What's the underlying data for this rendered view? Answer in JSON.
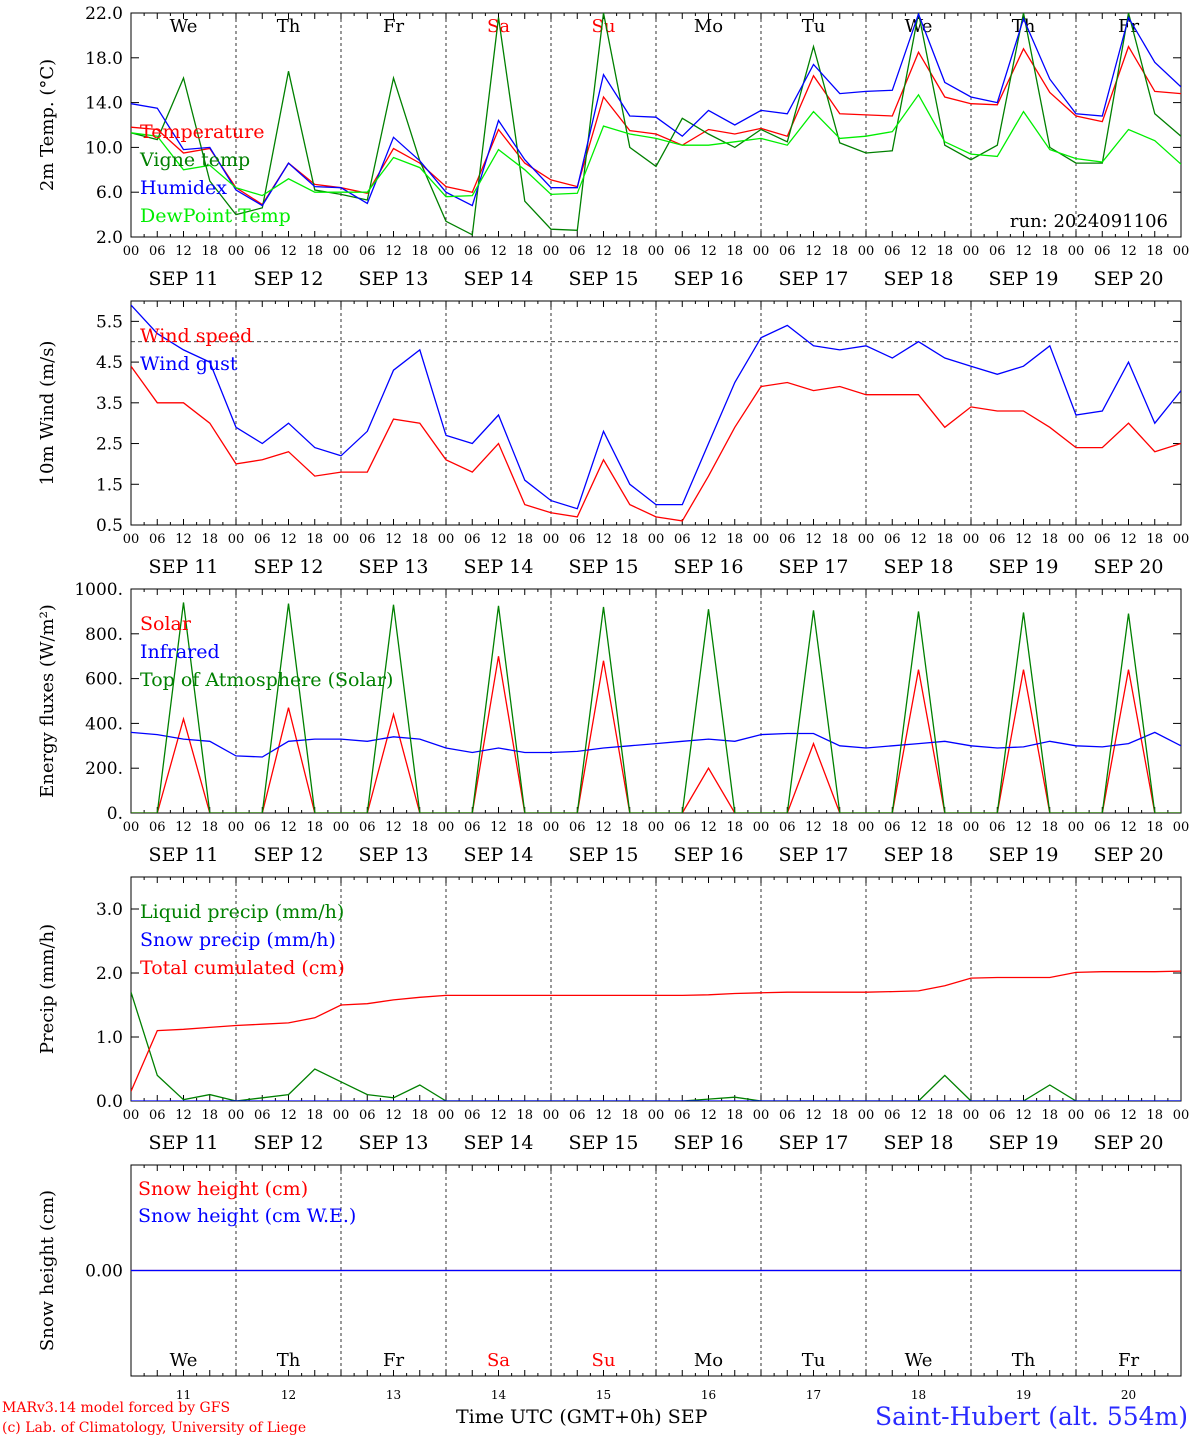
{
  "run_label": "run: 2024091106",
  "weekdays": [
    {
      "label": "We",
      "weekend": false
    },
    {
      "label": "Th",
      "weekend": false
    },
    {
      "label": "Fr",
      "weekend": false
    },
    {
      "label": "Sa",
      "weekend": true
    },
    {
      "label": "Su",
      "weekend": true
    },
    {
      "label": "Mo",
      "weekend": false
    },
    {
      "label": "Tu",
      "weekend": false
    },
    {
      "label": "We",
      "weekend": false
    },
    {
      "label": "Th",
      "weekend": false
    },
    {
      "label": "Fr",
      "weekend": false
    }
  ],
  "date_labels": [
    "SEP 11",
    "SEP 12",
    "SEP 13",
    "SEP 14",
    "SEP 15",
    "SEP 16",
    "SEP 17",
    "SEP 18",
    "SEP 19",
    "SEP 20"
  ],
  "hour_ticks": [
    "00",
    "06",
    "12",
    "18"
  ],
  "bottom_day_numbers": [
    "11",
    "12",
    "13",
    "14",
    "15",
    "16",
    "17",
    "18",
    "19",
    "20"
  ],
  "footer": {
    "credit_line1": "MARv3.14 model forced by GFS",
    "credit_line2": "(c) Lab. of Climatology, University of Liege",
    "x_title": "Time UTC (GMT+0h) SEP",
    "station": "Saint-Hubert (alt. 554m)"
  },
  "colors": {
    "red": "#ff0000",
    "green": "#008000",
    "blue": "#0000ff",
    "lightgreen": "#00ee00",
    "purple": "#800080",
    "weekend": "#ff0000"
  },
  "chart_data": [
    {
      "type": "line",
      "ylabel": "2m Temp. (°C)",
      "ylim": [
        2,
        22
      ],
      "yticks": [
        "2.0",
        "6.0",
        "10.0",
        "14.0",
        "18.0",
        "22.0"
      ],
      "x_hours_start": 0,
      "x_hours_end": 240,
      "step_hours": 6,
      "series": [
        {
          "name": "Temperature",
          "color": "red",
          "values": [
            11.8,
            11.6,
            9.5,
            9.9,
            6.4,
            4.9,
            8.6,
            6.7,
            6.4,
            5.9,
            9.9,
            8.6,
            6.5,
            6.0,
            11.6,
            8.6,
            7.1,
            6.5,
            14.5,
            11.5,
            11.2,
            10.2,
            11.6,
            11.2,
            11.7,
            11.0,
            16.4,
            13.0,
            12.9,
            12.8,
            18.5,
            14.5,
            13.9,
            13.8,
            18.8,
            14.9,
            12.8,
            12.3,
            19.0,
            15.0,
            14.8
          ]
        },
        {
          "name": "Vigne temp",
          "color": "green",
          "values": [
            11.3,
            10.7,
            16.2,
            7.0,
            4.0,
            4.6,
            16.8,
            6.2,
            5.8,
            5.3,
            16.2,
            8.8,
            3.4,
            2.2,
            21.6,
            5.2,
            2.7,
            2.6,
            22.0,
            10.0,
            8.3,
            12.6,
            11.2,
            10.0,
            11.6,
            10.5,
            19.0,
            10.4,
            9.5,
            9.7,
            22.0,
            10.2,
            8.9,
            10.2,
            22.0,
            10.0,
            8.6,
            8.6,
            22.0,
            13.0,
            11.0
          ]
        },
        {
          "name": "Humidex",
          "color": "blue",
          "values": [
            13.9,
            13.5,
            9.8,
            10.0,
            6.2,
            4.8,
            8.6,
            6.5,
            6.4,
            5.0,
            10.9,
            8.8,
            6.0,
            4.8,
            12.4,
            8.9,
            6.4,
            6.4,
            16.5,
            12.8,
            12.7,
            11.0,
            13.3,
            12.0,
            13.3,
            13.0,
            17.4,
            14.8,
            15.0,
            15.1,
            21.9,
            15.8,
            14.5,
            14.0,
            21.5,
            16.1,
            13.0,
            12.8,
            21.6,
            17.6,
            15.4
          ]
        },
        {
          "name": "DewPoint Temp",
          "color": "lightgreen",
          "values": [
            11.3,
            11.0,
            8.0,
            8.4,
            6.4,
            5.7,
            7.2,
            6.0,
            6.0,
            6.0,
            9.1,
            8.2,
            5.6,
            5.7,
            9.8,
            8.0,
            5.8,
            5.9,
            11.9,
            11.2,
            10.8,
            10.2,
            10.2,
            10.5,
            10.8,
            10.2,
            13.2,
            10.8,
            11.0,
            11.4,
            14.7,
            10.5,
            9.4,
            9.2,
            13.2,
            9.8,
            9.0,
            8.7,
            11.6,
            10.6,
            8.5
          ]
        }
      ]
    },
    {
      "type": "line",
      "ylabel": "10m Wind (m/s)",
      "ylim": [
        0.5,
        6.0
      ],
      "yticks": [
        "0.5",
        "1.5",
        "2.5",
        "3.5",
        "4.5",
        "5.5"
      ],
      "reference_line": 5.0,
      "x_hours_start": 0,
      "x_hours_end": 240,
      "step_hours": 6,
      "series": [
        {
          "name": "Wind speed",
          "color": "red",
          "values": [
            4.4,
            3.5,
            3.5,
            3.0,
            2.0,
            2.1,
            2.3,
            1.7,
            1.8,
            1.8,
            3.1,
            3.0,
            2.1,
            1.8,
            2.5,
            1.0,
            0.8,
            0.7,
            2.1,
            1.0,
            0.7,
            0.6,
            1.7,
            2.9,
            3.9,
            4.0,
            3.8,
            3.9,
            3.7,
            3.7,
            3.7,
            2.9,
            3.4,
            3.3,
            3.3,
            2.9,
            2.4,
            2.4,
            3.0,
            2.3,
            2.5
          ]
        },
        {
          "name": "Wind gust",
          "color": "blue",
          "values": [
            5.9,
            5.2,
            4.8,
            4.5,
            2.9,
            2.5,
            3.0,
            2.4,
            2.2,
            2.8,
            4.3,
            4.8,
            2.7,
            2.5,
            3.2,
            1.6,
            1.1,
            0.9,
            2.8,
            1.5,
            1.0,
            1.0,
            2.5,
            4.0,
            5.1,
            5.4,
            4.9,
            4.8,
            4.9,
            4.6,
            5.0,
            4.6,
            4.4,
            4.2,
            4.4,
            4.9,
            3.2,
            3.3,
            4.5,
            3.0,
            3.8
          ]
        }
      ]
    },
    {
      "type": "line",
      "ylabel": "Energy fluxes (W/m²)",
      "ylim": [
        0,
        1000
      ],
      "yticks": [
        "0.",
        "200.",
        "400.",
        "600.",
        "800.",
        "1000."
      ],
      "x_hours_start": 0,
      "x_hours_end": 240,
      "step_hours": 6,
      "series": [
        {
          "name": "Solar",
          "color": "red",
          "values": [
            0,
            0,
            420,
            0,
            0,
            0,
            470,
            0,
            0,
            0,
            440,
            0,
            0,
            0,
            700,
            0,
            0,
            0,
            680,
            0,
            0,
            0,
            200,
            0,
            0,
            0,
            310,
            0,
            0,
            0,
            640,
            0,
            0,
            0,
            640,
            0,
            0,
            0,
            640,
            0,
            0
          ]
        },
        {
          "name": "Infrared",
          "color": "blue",
          "values": [
            360,
            350,
            330,
            320,
            255,
            250,
            320,
            330,
            330,
            320,
            340,
            330,
            290,
            270,
            290,
            270,
            270,
            275,
            290,
            300,
            310,
            320,
            330,
            320,
            350,
            355,
            355,
            300,
            290,
            300,
            310,
            320,
            300,
            290,
            295,
            320,
            300,
            295,
            310,
            360,
            300
          ]
        },
        {
          "name": "Top of Atmosphere (Solar)",
          "color": "green",
          "values": [
            0,
            0,
            940,
            0,
            0,
            0,
            935,
            0,
            0,
            0,
            930,
            0,
            0,
            0,
            925,
            0,
            0,
            0,
            920,
            0,
            0,
            0,
            910,
            0,
            0,
            0,
            905,
            0,
            0,
            0,
            900,
            0,
            0,
            0,
            895,
            0,
            0,
            0,
            890,
            0,
            0
          ]
        }
      ]
    },
    {
      "type": "line",
      "ylabel": "Precip (mm/h)",
      "ylim": [
        0,
        3.5
      ],
      "yticks": [
        "0.0",
        "1.0",
        "2.0",
        "3.0"
      ],
      "x_hours_start": 0,
      "x_hours_end": 240,
      "step_hours": 6,
      "series": [
        {
          "name": "Liquid precip (mm/h)",
          "color": "green",
          "values": [
            1.7,
            0.4,
            0.02,
            0.1,
            0.0,
            0.05,
            0.1,
            0.5,
            0.3,
            0.1,
            0.05,
            0.25,
            0.0,
            0.0,
            0.0,
            0.0,
            0.0,
            0.0,
            0.0,
            0.0,
            0.0,
            0.0,
            0.03,
            0.06,
            0.0,
            0.0,
            0.0,
            0.0,
            0.0,
            0.0,
            0.0,
            0.4,
            0.0,
            0.0,
            0.0,
            0.25,
            0.0,
            0.0,
            0.0,
            0.0,
            0.0
          ]
        },
        {
          "name": "Snow precip (mm/h)",
          "color": "blue",
          "values": [
            0,
            0,
            0,
            0,
            0,
            0,
            0,
            0,
            0,
            0,
            0,
            0,
            0,
            0,
            0,
            0,
            0,
            0,
            0,
            0,
            0,
            0,
            0,
            0,
            0,
            0,
            0,
            0,
            0,
            0,
            0,
            0,
            0,
            0,
            0,
            0,
            0,
            0,
            0,
            0,
            0
          ]
        },
        {
          "name": "Total cumulated (cm)",
          "color": "red",
          "values": [
            0.15,
            1.1,
            1.12,
            1.15,
            1.18,
            1.2,
            1.22,
            1.3,
            1.5,
            1.52,
            1.58,
            1.62,
            1.65,
            1.65,
            1.65,
            1.65,
            1.65,
            1.65,
            1.65,
            1.65,
            1.65,
            1.65,
            1.66,
            1.68,
            1.69,
            1.7,
            1.7,
            1.7,
            1.7,
            1.71,
            1.72,
            1.8,
            1.92,
            1.93,
            1.93,
            1.93,
            2.01,
            2.02,
            2.02,
            2.02,
            2.03
          ]
        }
      ]
    },
    {
      "type": "line",
      "ylabel": "Snow height (cm)",
      "ylim": [
        -1,
        1
      ],
      "yticks": [
        "0.00"
      ],
      "x_hours_start": 0,
      "x_hours_end": 240,
      "step_hours": 6,
      "series": [
        {
          "name": "Snow height (cm)",
          "color": "red",
          "values": [
            0,
            0,
            0,
            0,
            0,
            0,
            0,
            0,
            0,
            0,
            0,
            0,
            0,
            0,
            0,
            0,
            0,
            0,
            0,
            0,
            0,
            0,
            0,
            0,
            0,
            0,
            0,
            0,
            0,
            0,
            0,
            0,
            0,
            0,
            0,
            0,
            0,
            0,
            0,
            0,
            0
          ]
        },
        {
          "name": "Snow height (cm W.E.)",
          "color": "blue",
          "values": [
            0,
            0,
            0,
            0,
            0,
            0,
            0,
            0,
            0,
            0,
            0,
            0,
            0,
            0,
            0,
            0,
            0,
            0,
            0,
            0,
            0,
            0,
            0,
            0,
            0,
            0,
            0,
            0,
            0,
            0,
            0,
            0,
            0,
            0,
            0,
            0,
            0,
            0,
            0,
            0,
            0
          ]
        }
      ]
    }
  ]
}
